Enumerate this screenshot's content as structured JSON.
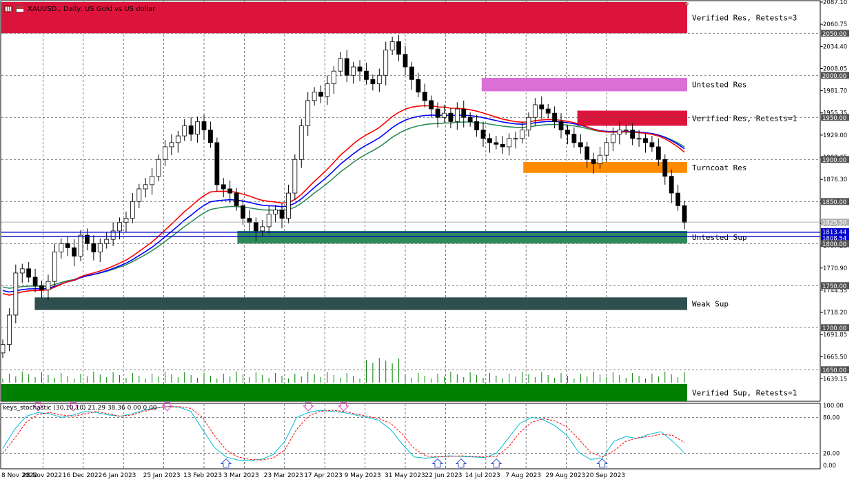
{
  "window": {
    "title": "XAUUSD., Daily:  US Gold vs US dollar",
    "stochastic_label": "keys_stochastic (30,10,10) 21.29 38.36 0.00 0.00"
  },
  "colors": {
    "verified_res": "#dc143c",
    "untested_res": "#da70d6",
    "turncoat_res": "#ff8c00",
    "untested_sup": "#2e8b57",
    "weak_sup": "#2f4f4f",
    "verified_sup": "#008000",
    "ema_fast": "#ff0000",
    "ema_mid": "#0000ff",
    "ema_slow": "#2e8b57",
    "stoch_main": "#00bcd4",
    "stoch_signal": "#ff0000"
  },
  "chart_data": [
    {
      "type": "candlestick",
      "title": "XAUUSD., Daily:  US Gold vs US dollar",
      "ylim": [
        1612.5,
        2087.1
      ],
      "price_ticks": [
        2087.1,
        2060.75,
        2034.4,
        2008.05,
        1981.7,
        1955.35,
        1929.0,
        1902.65,
        1876.3,
        1849.95,
        1823.6,
        1797.25,
        1770.9,
        1744.55,
        1718.2,
        1691.85,
        1665.5,
        1639.15
      ],
      "level_labels": [
        "2050.00",
        "2000.00",
        "1950.00",
        "1900.00",
        "1850.00",
        "1800.00",
        "1750.00",
        "1700.00",
        "1650.00"
      ],
      "current_price_labels": [
        "1825.50",
        "1813.44",
        "1808.54",
        "1800.00"
      ],
      "time_labels": [
        "8 Nov 2022",
        "28 Nov 2022",
        "16 Dec 2022",
        "6 Jan 2023",
        "25 Jan 2023",
        "13 Feb 2023",
        "3 Mar 2023",
        "23 Mar 2023",
        "17 Apr 2023",
        "9 May 2023",
        "31 May 2023",
        "22 Jun 2023",
        "14 Jul 2023",
        "7 Aug 2023",
        "29 Aug 2023",
        "20 Sep 2023"
      ],
      "zones": [
        {
          "label": "Verified Res, Retests=3",
          "low": 2050,
          "high": 2087.1,
          "start": "8 Nov 2022",
          "color": "#dc143c"
        },
        {
          "label": "Untested Res",
          "low": 1981,
          "high": 1997,
          "start": "14 Jul 2023",
          "color": "#da70d6"
        },
        {
          "label": "Verified Res, Retests=1",
          "low": 1940,
          "high": 1958,
          "start": "29 Aug 2023",
          "color": "#dc143c"
        },
        {
          "label": "Turncoat Res",
          "low": 1884,
          "high": 1897,
          "start": "7 Aug 2023",
          "color": "#ff8c00"
        },
        {
          "label": "Untested Sup",
          "low": 1800,
          "high": 1815,
          "start": "3 Mar 2023",
          "color": "#2e8b57"
        },
        {
          "label": "Weak Sup",
          "low": 1721,
          "high": 1736,
          "start": "28 Nov 2022",
          "color": "#2f4f4f"
        },
        {
          "label": "Verified Sup, Retests=1",
          "low": 1612.5,
          "high": 1633,
          "start": "8 Nov 2022",
          "color": "#008000"
        }
      ],
      "horizontal_lines": [
        1813.44,
        1808.54
      ],
      "close_series": [
        1680,
        1715,
        1765,
        1770,
        1760,
        1750,
        1745,
        1755,
        1790,
        1800,
        1795,
        1785,
        1810,
        1800,
        1790,
        1800,
        1805,
        1815,
        1825,
        1830,
        1850,
        1865,
        1870,
        1880,
        1900,
        1915,
        1920,
        1928,
        1940,
        1930,
        1945,
        1935,
        1920,
        1870,
        1865,
        1860,
        1845,
        1830,
        1825,
        1815,
        1820,
        1835,
        1840,
        1830,
        1860,
        1900,
        1940,
        1970,
        1980,
        1975,
        1990,
        2005,
        2020,
        2000,
        2010,
        2005,
        1995,
        1990,
        2000,
        2030,
        2040,
        2025,
        2010,
        1995,
        1980,
        1970,
        1960,
        1950,
        1955,
        1945,
        1960,
        1950,
        1945,
        1935,
        1925,
        1920,
        1918,
        1915,
        1925,
        1925,
        1935,
        1950,
        1965,
        1960,
        1955,
        1945,
        1935,
        1930,
        1920,
        1915,
        1900,
        1895,
        1905,
        1920,
        1930,
        1935,
        1935,
        1925,
        1925,
        1920,
        1915,
        1900,
        1880,
        1860,
        1845,
        1825
      ]
    },
    {
      "type": "line",
      "title": "keys_stochastic (30,10,10) 21.29 38.36 0.00 0.00",
      "ylim": [
        0,
        100
      ],
      "levels": [
        20,
        80
      ],
      "tick_labels": [
        "100.00",
        "80.00",
        "20.00",
        "0.00"
      ],
      "series": [
        {
          "values": [
            28,
            60,
            82,
            88,
            86,
            80,
            84,
            90,
            88,
            84,
            82,
            86,
            92,
            96,
            98,
            97,
            90,
            60,
            30,
            14,
            9,
            8,
            10,
            18,
            40,
            80,
            88,
            92,
            90,
            88,
            84,
            80,
            75,
            60,
            35,
            14,
            12,
            14,
            16,
            15,
            14,
            13,
            20,
            45,
            70,
            80,
            76,
            66,
            50,
            22,
            10,
            12,
            40,
            48,
            45,
            52,
            56,
            40,
            21
          ]
        },
        {
          "values": [
            20,
            45,
            72,
            85,
            88,
            84,
            82,
            86,
            90,
            86,
            82,
            84,
            90,
            95,
            98,
            98,
            95,
            80,
            50,
            26,
            14,
            10,
            9,
            12,
            26,
            60,
            82,
            90,
            92,
            90,
            86,
            82,
            78,
            70,
            52,
            28,
            16,
            14,
            15,
            16,
            15,
            14,
            15,
            30,
            55,
            72,
            78,
            74,
            64,
            44,
            22,
            14,
            24,
            40,
            46,
            48,
            52,
            50,
            38
          ]
        }
      ]
    }
  ]
}
